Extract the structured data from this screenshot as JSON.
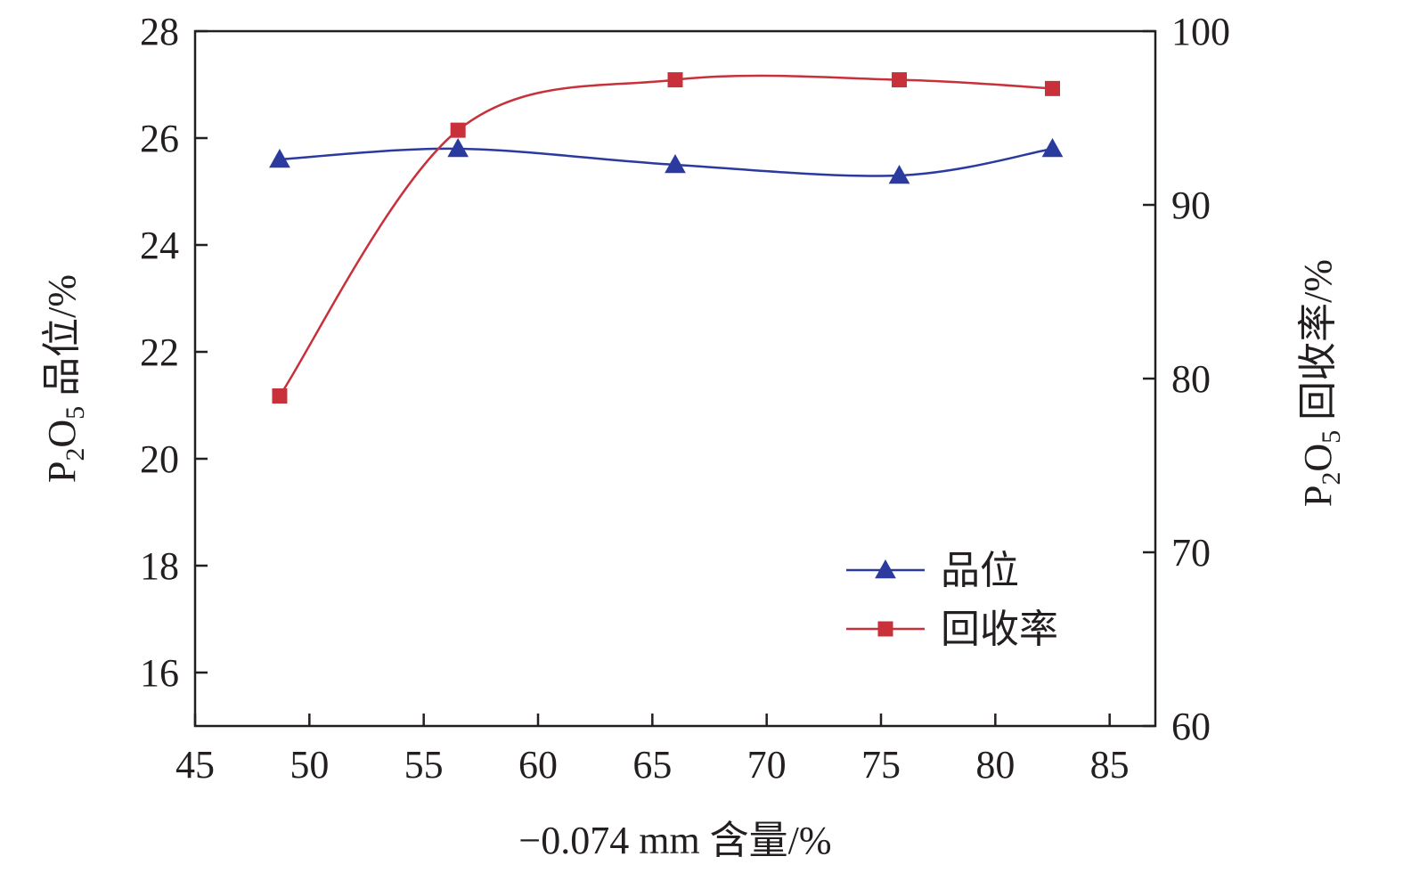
{
  "chart_data": {
    "type": "line",
    "x": [
      48.7,
      56.5,
      66.0,
      75.8,
      82.5
    ],
    "xlabel": "−0.074 mm 含量/%",
    "xlim": [
      45,
      87
    ],
    "xticks": [
      45,
      50,
      55,
      60,
      65,
      70,
      75,
      80,
      85
    ],
    "ylabel_left": {
      "main": "P",
      "sub1": "2",
      "mid": "O",
      "sub2": "5",
      "tail": " 品位/%"
    },
    "ylabel_right": {
      "main": "P",
      "sub1": "2",
      "mid": "O",
      "sub2": "5",
      "tail": " 回收率/%"
    },
    "ylim_left": [
      15,
      28
    ],
    "yticks_left": [
      16,
      18,
      20,
      22,
      24,
      26,
      28
    ],
    "ylim_right": [
      60,
      100
    ],
    "yticks_right": [
      60,
      70,
      80,
      90,
      100
    ],
    "series": [
      {
        "name": "品位",
        "axis": "left",
        "marker": "triangle",
        "color": "#2b3a9e",
        "values": [
          25.6,
          25.8,
          25.5,
          25.3,
          25.8
        ]
      },
      {
        "name": "回收率",
        "axis": "right",
        "marker": "square",
        "color": "#c8303a",
        "values": [
          79.0,
          94.3,
          97.2,
          97.2,
          96.7
        ]
      }
    ],
    "legend_position": "lower-right",
    "grid": false
  }
}
